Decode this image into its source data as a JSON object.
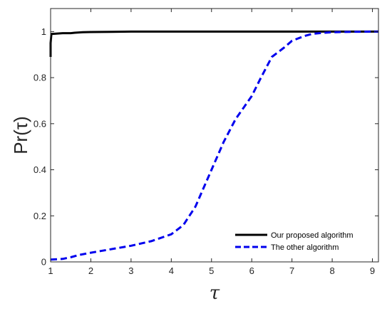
{
  "chart_data": {
    "type": "line",
    "xlabel": "τ",
    "ylabel": "Pr(τ)",
    "xlim": [
      1,
      9.15
    ],
    "ylim": [
      0,
      1.1
    ],
    "xticks": [
      "1",
      "2",
      "3",
      "4",
      "5",
      "6",
      "7",
      "8",
      "9"
    ],
    "yticks": [
      "0",
      "0.2",
      "0.4",
      "0.6",
      "0.8",
      "1"
    ],
    "grid": false,
    "legend_position": "bottom-right",
    "series": [
      {
        "name": "Our proposed algorithm",
        "color": "#000000",
        "style": "solid",
        "x": [
          1.0,
          1.0,
          1.02,
          1.05,
          1.3,
          1.5,
          1.6,
          1.8,
          2.0,
          2.5,
          3.0,
          9.15
        ],
        "y": [
          0.89,
          0.95,
          0.99,
          0.99,
          0.993,
          0.993,
          0.995,
          0.997,
          0.998,
          0.999,
          1.0,
          1.0
        ]
      },
      {
        "name": "The other algorithm",
        "color": "#0000ee",
        "style": "dashed",
        "x": [
          1.0,
          1.3,
          1.5,
          1.7,
          2.0,
          2.5,
          3.0,
          3.5,
          4.0,
          4.3,
          4.6,
          4.8,
          5.0,
          5.3,
          5.6,
          5.8,
          6.0,
          6.2,
          6.5,
          6.8,
          7.0,
          7.3,
          7.5,
          7.8,
          8.0,
          8.5,
          9.0,
          9.15
        ],
        "y": [
          0.01,
          0.013,
          0.02,
          0.03,
          0.04,
          0.055,
          0.07,
          0.09,
          0.12,
          0.16,
          0.24,
          0.32,
          0.4,
          0.52,
          0.62,
          0.67,
          0.72,
          0.79,
          0.89,
          0.93,
          0.96,
          0.98,
          0.99,
          0.995,
          0.997,
          0.999,
          1.0,
          1.0
        ]
      }
    ]
  }
}
